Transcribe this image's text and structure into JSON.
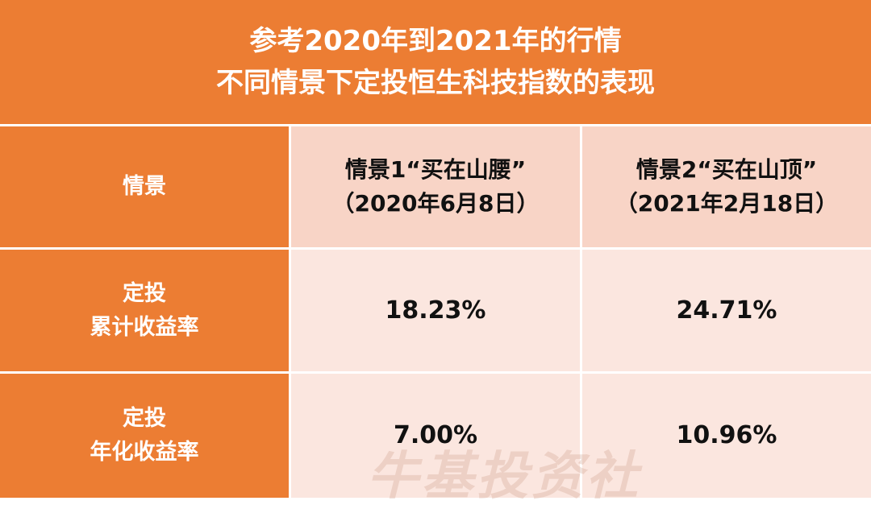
{
  "title": [
    "参考2020年到2021年的行情",
    "不同情景下定投恒生科技指数的表现"
  ],
  "table": {
    "header": [
      [
        "情景"
      ],
      [
        "情景1“买在山腰”",
        "（2020年6月8日）"
      ],
      [
        "情景2“买在山顶”",
        "（2021年2月18日）"
      ]
    ],
    "rows": [
      [
        [
          "定投",
          "累计收益率"
        ],
        "18.23%",
        "24.71%"
      ],
      [
        [
          "定投",
          "年化收益率"
        ],
        "7.00%",
        "10.96%"
      ]
    ]
  },
  "watermark": "牛基投资社"
}
